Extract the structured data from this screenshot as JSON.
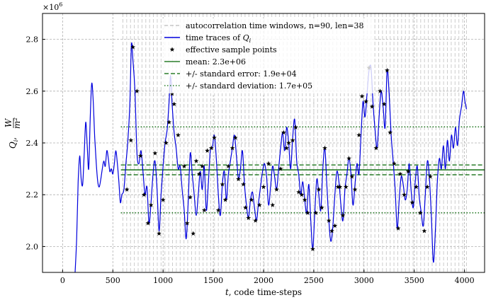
{
  "chart_data": {
    "type": "line",
    "xlabel_var": "t",
    "xlabel_rest": ", code time-steps",
    "ylabel_main": "Q",
    "ylabel_sub": "i",
    "ylabel_unit_num": "W",
    "ylabel_unit_den": "m²",
    "y_offset_base": "×10",
    "y_offset_exp": "6",
    "xlim": [
      -200,
      4200
    ],
    "ylim": [
      1900000,
      2900000
    ],
    "xticks": [
      0,
      500,
      1000,
      1500,
      2000,
      2500,
      3000,
      3500,
      4000
    ],
    "xtick_labels": [
      "0",
      "500",
      "1000",
      "1500",
      "2000",
      "2500",
      "3000",
      "3500",
      "4000"
    ],
    "yticks": [
      2000000,
      2200000,
      2400000,
      2600000,
      2800000
    ],
    "ytick_labels": [
      "2.0",
      "2.2",
      "2.4",
      "2.6",
      "2.8"
    ],
    "grid": true,
    "legend_position": "top-center",
    "colors": {
      "trace": "#0000dd",
      "trace_faded": "#8888ee",
      "window_lines": "#cccccc",
      "stats": "#006400",
      "samples": "#000000"
    },
    "legend": [
      {
        "kind": "window",
        "label": "autocorrelation time windows, n=90, len=38"
      },
      {
        "kind": "trace",
        "label_prefix": "time traces of ",
        "label_var": "Q",
        "label_sub": "i"
      },
      {
        "kind": "sample",
        "label": "effective sample points"
      },
      {
        "kind": "mean",
        "label": "mean: 2.3e+06"
      },
      {
        "kind": "stderr",
        "label": "+/- standard error: 1.9e+04"
      },
      {
        "kind": "stddev",
        "label": "+/- standard deviation: 1.7e+05"
      }
    ],
    "statistics": {
      "mean": 2296000,
      "standard_error": 19000,
      "standard_deviation": 166000,
      "stats_x_start": 580,
      "stats_x_end": 4200
    },
    "windows": {
      "count": 90,
      "length": 38,
      "start": 600
    },
    "trace_x_start": 120,
    "trace_x_end": 4020,
    "trace_series": {
      "name": "time traces of Q_i",
      "points": [
        [
          120,
          1870000
        ],
        [
          140,
          2030000
        ],
        [
          155,
          2250000
        ],
        [
          170,
          2350000
        ],
        [
          185,
          2260000
        ],
        [
          200,
          2240000
        ],
        [
          215,
          2360000
        ],
        [
          230,
          2480000
        ],
        [
          245,
          2390000
        ],
        [
          260,
          2300000
        ],
        [
          275,
          2500000
        ],
        [
          290,
          2630000
        ],
        [
          305,
          2560000
        ],
        [
          320,
          2420000
        ],
        [
          335,
          2320000
        ],
        [
          350,
          2250000
        ],
        [
          365,
          2230000
        ],
        [
          380,
          2260000
        ],
        [
          395,
          2300000
        ],
        [
          410,
          2330000
        ],
        [
          425,
          2310000
        ],
        [
          440,
          2370000
        ],
        [
          455,
          2340000
        ],
        [
          470,
          2290000
        ],
        [
          485,
          2300000
        ],
        [
          500,
          2280000
        ],
        [
          515,
          2320000
        ],
        [
          530,
          2370000
        ],
        [
          545,
          2320000
        ],
        [
          560,
          2250000
        ],
        [
          575,
          2170000
        ],
        [
          590,
          2200000
        ],
        [
          610,
          2220000
        ],
        [
          630,
          2320000
        ],
        [
          650,
          2410000
        ],
        [
          670,
          2560000
        ],
        [
          685,
          2780000
        ],
        [
          700,
          2720000
        ],
        [
          720,
          2600000
        ],
        [
          740,
          2360000
        ],
        [
          760,
          2320000
        ],
        [
          780,
          2370000
        ],
        [
          800,
          2290000
        ],
        [
          820,
          2200000
        ],
        [
          840,
          2230000
        ],
        [
          860,
          2090000
        ],
        [
          880,
          2170000
        ],
        [
          900,
          2280000
        ],
        [
          920,
          2330000
        ],
        [
          940,
          2220000
        ],
        [
          960,
          2060000
        ],
        [
          980,
          2200000
        ],
        [
          1000,
          2310000
        ],
        [
          1020,
          2400000
        ],
        [
          1040,
          2450000
        ],
        [
          1060,
          2560000
        ],
        [
          1075,
          2660000
        ],
        [
          1090,
          2550000
        ],
        [
          1110,
          2440000
        ],
        [
          1130,
          2380000
        ],
        [
          1150,
          2300000
        ],
        [
          1170,
          2310000
        ],
        [
          1190,
          2220000
        ],
        [
          1210,
          2140000
        ],
        [
          1230,
          2030000
        ],
        [
          1250,
          2170000
        ],
        [
          1270,
          2360000
        ],
        [
          1290,
          2280000
        ],
        [
          1310,
          2200000
        ],
        [
          1330,
          2120000
        ],
        [
          1350,
          2200000
        ],
        [
          1370,
          2290000
        ],
        [
          1390,
          2220000
        ],
        [
          1410,
          2310000
        ],
        [
          1430,
          2140000
        ],
        [
          1450,
          2240000
        ],
        [
          1470,
          2370000
        ],
        [
          1490,
          2380000
        ],
        [
          1510,
          2430000
        ],
        [
          1530,
          2340000
        ],
        [
          1550,
          2200000
        ],
        [
          1570,
          2120000
        ],
        [
          1590,
          2240000
        ],
        [
          1610,
          2290000
        ],
        [
          1630,
          2180000
        ],
        [
          1650,
          2280000
        ],
        [
          1670,
          2330000
        ],
        [
          1690,
          2380000
        ],
        [
          1710,
          2430000
        ],
        [
          1730,
          2350000
        ],
        [
          1750,
          2260000
        ],
        [
          1770,
          2300000
        ],
        [
          1790,
          2370000
        ],
        [
          1810,
          2240000
        ],
        [
          1830,
          2160000
        ],
        [
          1850,
          2110000
        ],
        [
          1870,
          2180000
        ],
        [
          1890,
          2210000
        ],
        [
          1910,
          2150000
        ],
        [
          1930,
          2100000
        ],
        [
          1950,
          2170000
        ],
        [
          1970,
          2230000
        ],
        [
          1990,
          2290000
        ],
        [
          2010,
          2320000
        ],
        [
          2030,
          2270000
        ],
        [
          2050,
          2160000
        ],
        [
          2070,
          2230000
        ],
        [
          2090,
          2310000
        ],
        [
          2110,
          2270000
        ],
        [
          2130,
          2220000
        ],
        [
          2150,
          2300000
        ],
        [
          2170,
          2380000
        ],
        [
          2190,
          2440000
        ],
        [
          2210,
          2370000
        ],
        [
          2230,
          2460000
        ],
        [
          2250,
          2400000
        ],
        [
          2270,
          2300000
        ],
        [
          2290,
          2420000
        ],
        [
          2310,
          2490000
        ],
        [
          2330,
          2330000
        ],
        [
          2350,
          2280000
        ],
        [
          2370,
          2200000
        ],
        [
          2390,
          2250000
        ],
        [
          2410,
          2180000
        ],
        [
          2430,
          2130000
        ],
        [
          2450,
          2240000
        ],
        [
          2470,
          2100000
        ],
        [
          2490,
          1990000
        ],
        [
          2510,
          2130000
        ],
        [
          2530,
          2260000
        ],
        [
          2550,
          2200000
        ],
        [
          2570,
          2140000
        ],
        [
          2590,
          2300000
        ],
        [
          2610,
          2380000
        ],
        [
          2630,
          2240000
        ],
        [
          2650,
          2100000
        ],
        [
          2670,
          2020000
        ],
        [
          2690,
          2080000
        ],
        [
          2710,
          2200000
        ],
        [
          2730,
          2290000
        ],
        [
          2750,
          2250000
        ],
        [
          2770,
          2160000
        ],
        [
          2790,
          2100000
        ],
        [
          2810,
          2220000
        ],
        [
          2830,
          2280000
        ],
        [
          2850,
          2340000
        ],
        [
          2870,
          2280000
        ],
        [
          2890,
          2160000
        ],
        [
          2910,
          2240000
        ],
        [
          2930,
          2320000
        ],
        [
          2950,
          2280000
        ],
        [
          2970,
          2430000
        ],
        [
          2990,
          2560000
        ],
        [
          3010,
          2500000
        ],
        [
          3030,
          2590000
        ],
        [
          3050,
          2680000
        ],
        [
          3070,
          2690000
        ],
        [
          3090,
          2550000
        ],
        [
          3110,
          2450000
        ],
        [
          3130,
          2380000
        ],
        [
          3150,
          2500000
        ],
        [
          3170,
          2600000
        ],
        [
          3190,
          2540000
        ],
        [
          3210,
          2460000
        ],
        [
          3230,
          2680000
        ],
        [
          3250,
          2590000
        ],
        [
          3270,
          2430000
        ],
        [
          3290,
          2330000
        ],
        [
          3310,
          2220000
        ],
        [
          3330,
          2070000
        ],
        [
          3350,
          2180000
        ],
        [
          3370,
          2270000
        ],
        [
          3390,
          2240000
        ],
        [
          3410,
          2180000
        ],
        [
          3430,
          2220000
        ],
        [
          3450,
          2320000
        ],
        [
          3470,
          2210000
        ],
        [
          3490,
          2150000
        ],
        [
          3510,
          2250000
        ],
        [
          3530,
          2310000
        ],
        [
          3550,
          2190000
        ],
        [
          3570,
          2130000
        ],
        [
          3590,
          2080000
        ],
        [
          3610,
          2200000
        ],
        [
          3630,
          2330000
        ],
        [
          3650,
          2270000
        ],
        [
          3670,
          2120000
        ],
        [
          3690,
          1940000
        ],
        [
          3710,
          2060000
        ],
        [
          3730,
          2250000
        ],
        [
          3750,
          2340000
        ],
        [
          3770,
          2300000
        ],
        [
          3790,
          2390000
        ],
        [
          3810,
          2300000
        ],
        [
          3830,
          2410000
        ],
        [
          3850,
          2330000
        ],
        [
          3870,
          2430000
        ],
        [
          3890,
          2380000
        ],
        [
          3910,
          2460000
        ],
        [
          3930,
          2390000
        ],
        [
          3950,
          2490000
        ],
        [
          3970,
          2540000
        ],
        [
          3990,
          2600000
        ],
        [
          4005,
          2560000
        ],
        [
          4020,
          2530000
        ]
      ]
    },
    "sample_points": [
      [
        640,
        2220000
      ],
      [
        680,
        2410000
      ],
      [
        700,
        2770000
      ],
      [
        740,
        2600000
      ],
      [
        775,
        2350000
      ],
      [
        810,
        2200000
      ],
      [
        850,
        2090000
      ],
      [
        880,
        2160000
      ],
      [
        920,
        2360000
      ],
      [
        960,
        2050000
      ],
      [
        1000,
        2180000
      ],
      [
        1030,
        2400000
      ],
      [
        1060,
        2480000
      ],
      [
        1090,
        2590000
      ],
      [
        1110,
        2550000
      ],
      [
        1150,
        2430000
      ],
      [
        1210,
        2310000
      ],
      [
        1240,
        2090000
      ],
      [
        1270,
        2190000
      ],
      [
        1300,
        2050000
      ],
      [
        1330,
        2330000
      ],
      [
        1360,
        2280000
      ],
      [
        1390,
        2310000
      ],
      [
        1410,
        2140000
      ],
      [
        1440,
        2370000
      ],
      [
        1480,
        2380000
      ],
      [
        1510,
        2420000
      ],
      [
        1550,
        2140000
      ],
      [
        1590,
        2240000
      ],
      [
        1620,
        2180000
      ],
      [
        1650,
        2310000
      ],
      [
        1690,
        2380000
      ],
      [
        1720,
        2420000
      ],
      [
        1750,
        2260000
      ],
      [
        1800,
        2240000
      ],
      [
        1820,
        2150000
      ],
      [
        1850,
        2110000
      ],
      [
        1880,
        2180000
      ],
      [
        1920,
        2100000
      ],
      [
        1960,
        2160000
      ],
      [
        2000,
        2230000
      ],
      [
        2050,
        2320000
      ],
      [
        2090,
        2160000
      ],
      [
        2130,
        2220000
      ],
      [
        2170,
        2300000
      ],
      [
        2200,
        2440000
      ],
      [
        2230,
        2380000
      ],
      [
        2250,
        2400000
      ],
      [
        2290,
        2410000
      ],
      [
        2320,
        2460000
      ],
      [
        2350,
        2210000
      ],
      [
        2380,
        2200000
      ],
      [
        2410,
        2180000
      ],
      [
        2440,
        2130000
      ],
      [
        2490,
        1990000
      ],
      [
        2520,
        2130000
      ],
      [
        2550,
        2220000
      ],
      [
        2580,
        2150000
      ],
      [
        2610,
        2380000
      ],
      [
        2650,
        2100000
      ],
      [
        2680,
        2060000
      ],
      [
        2710,
        2080000
      ],
      [
        2740,
        2230000
      ],
      [
        2760,
        2230000
      ],
      [
        2790,
        2120000
      ],
      [
        2820,
        2230000
      ],
      [
        2850,
        2340000
      ],
      [
        2880,
        2270000
      ],
      [
        2910,
        2220000
      ],
      [
        2950,
        2430000
      ],
      [
        2980,
        2580000
      ],
      [
        3020,
        2560000
      ],
      [
        3050,
        2690000
      ],
      [
        3080,
        2540000
      ],
      [
        3120,
        2380000
      ],
      [
        3160,
        2600000
      ],
      [
        3200,
        2550000
      ],
      [
        3230,
        2680000
      ],
      [
        3260,
        2440000
      ],
      [
        3300,
        2320000
      ],
      [
        3340,
        2070000
      ],
      [
        3360,
        2280000
      ],
      [
        3400,
        2200000
      ],
      [
        3440,
        2290000
      ],
      [
        3480,
        2170000
      ],
      [
        3520,
        2230000
      ],
      [
        3560,
        2130000
      ],
      [
        3600,
        2060000
      ],
      [
        3630,
        2230000
      ],
      [
        3660,
        2270000
      ]
    ]
  }
}
